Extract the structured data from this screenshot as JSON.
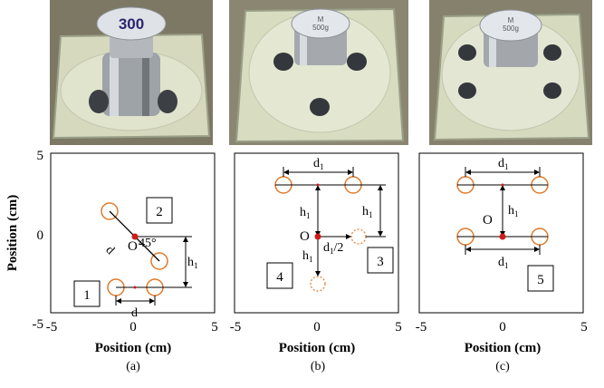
{
  "photos": {
    "a": {
      "weight_label": "300"
    },
    "b": {
      "weight_label_top": "M",
      "weight_label_bottom": "500g"
    },
    "c": {
      "weight_label_top": "M",
      "weight_label_bottom": "500g"
    }
  },
  "axis": {
    "xlabel": "Position (cm)",
    "ylabel": "Position (cm)",
    "xlim": [
      -5,
      5
    ],
    "ylim": [
      -5,
      5
    ],
    "xticks": [
      "-5",
      "0",
      "5"
    ],
    "yticks": [
      "5",
      "0",
      "-5"
    ]
  },
  "panels": {
    "a": {
      "caption": "(a)",
      "boxes": [
        "1",
        "2"
      ],
      "origin_label": "O",
      "angle_label": "45°",
      "d_label": "d",
      "d_diag_label": "d",
      "h_label": "h",
      "h_sub": "1"
    },
    "b": {
      "caption": "(b)",
      "boxes": [
        "3",
        "4"
      ],
      "origin_label": "O",
      "d_label": "d",
      "d_sub": "1",
      "h_top_label": "h",
      "h_right_label": "h",
      "h_bottom_label": "h",
      "h_sub": "1",
      "half_label": "d",
      "half_sub": "1",
      "half_suffix": "/2"
    },
    "c": {
      "caption": "(c)",
      "boxes": [
        "5"
      ],
      "origin_label": "O",
      "d_top_label": "d",
      "d_bottom_label": "d",
      "d_sub": "1",
      "h_label": "h",
      "h_sub": "1"
    }
  },
  "colors": {
    "circle": "#e07a2c",
    "point": "#d11a1a",
    "pad": "#d8dcc0"
  }
}
